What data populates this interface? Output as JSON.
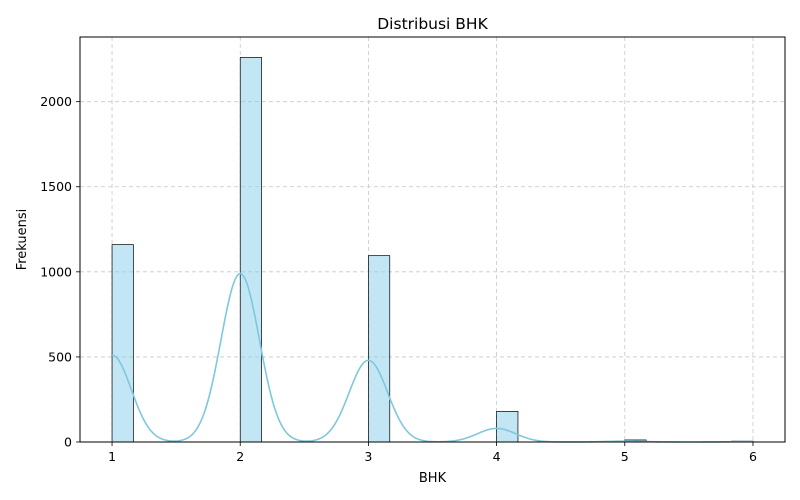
{
  "chart_data": {
    "type": "bar",
    "title": "Distribusi BHK",
    "xlabel": "BHK",
    "ylabel": "Frekuensi",
    "xlim": [
      0.75,
      6.25
    ],
    "ylim": [
      0,
      2380
    ],
    "x_ticks": [
      "1",
      "2",
      "3",
      "4",
      "5",
      "6"
    ],
    "y_ticks": [
      "0",
      "500",
      "1000",
      "1500",
      "2000"
    ],
    "grid": true,
    "bar_color": "#87CEEB",
    "kde_color": "#7EC8DE",
    "bins": [
      {
        "x0": 1.0,
        "x1": 1.1667,
        "value": 1160
      },
      {
        "x0": 2.0,
        "x1": 2.1667,
        "value": 2260
      },
      {
        "x0": 3.0,
        "x1": 3.1667,
        "value": 1095
      },
      {
        "x0": 4.0,
        "x1": 4.1667,
        "value": 180
      },
      {
        "x0": 5.0,
        "x1": 5.1667,
        "value": 12
      },
      {
        "x0": 5.8333,
        "x1": 6.0,
        "value": 5
      }
    ],
    "kde": {
      "peaks": [
        {
          "x": 1.0,
          "height": 510
        },
        {
          "x": 2.0,
          "height": 990
        },
        {
          "x": 3.0,
          "height": 480
        },
        {
          "x": 4.0,
          "height": 80
        },
        {
          "x": 5.0,
          "height": 5
        },
        {
          "x": 6.0,
          "height": 3
        }
      ],
      "x_range": [
        1.0,
        6.0
      ]
    }
  }
}
